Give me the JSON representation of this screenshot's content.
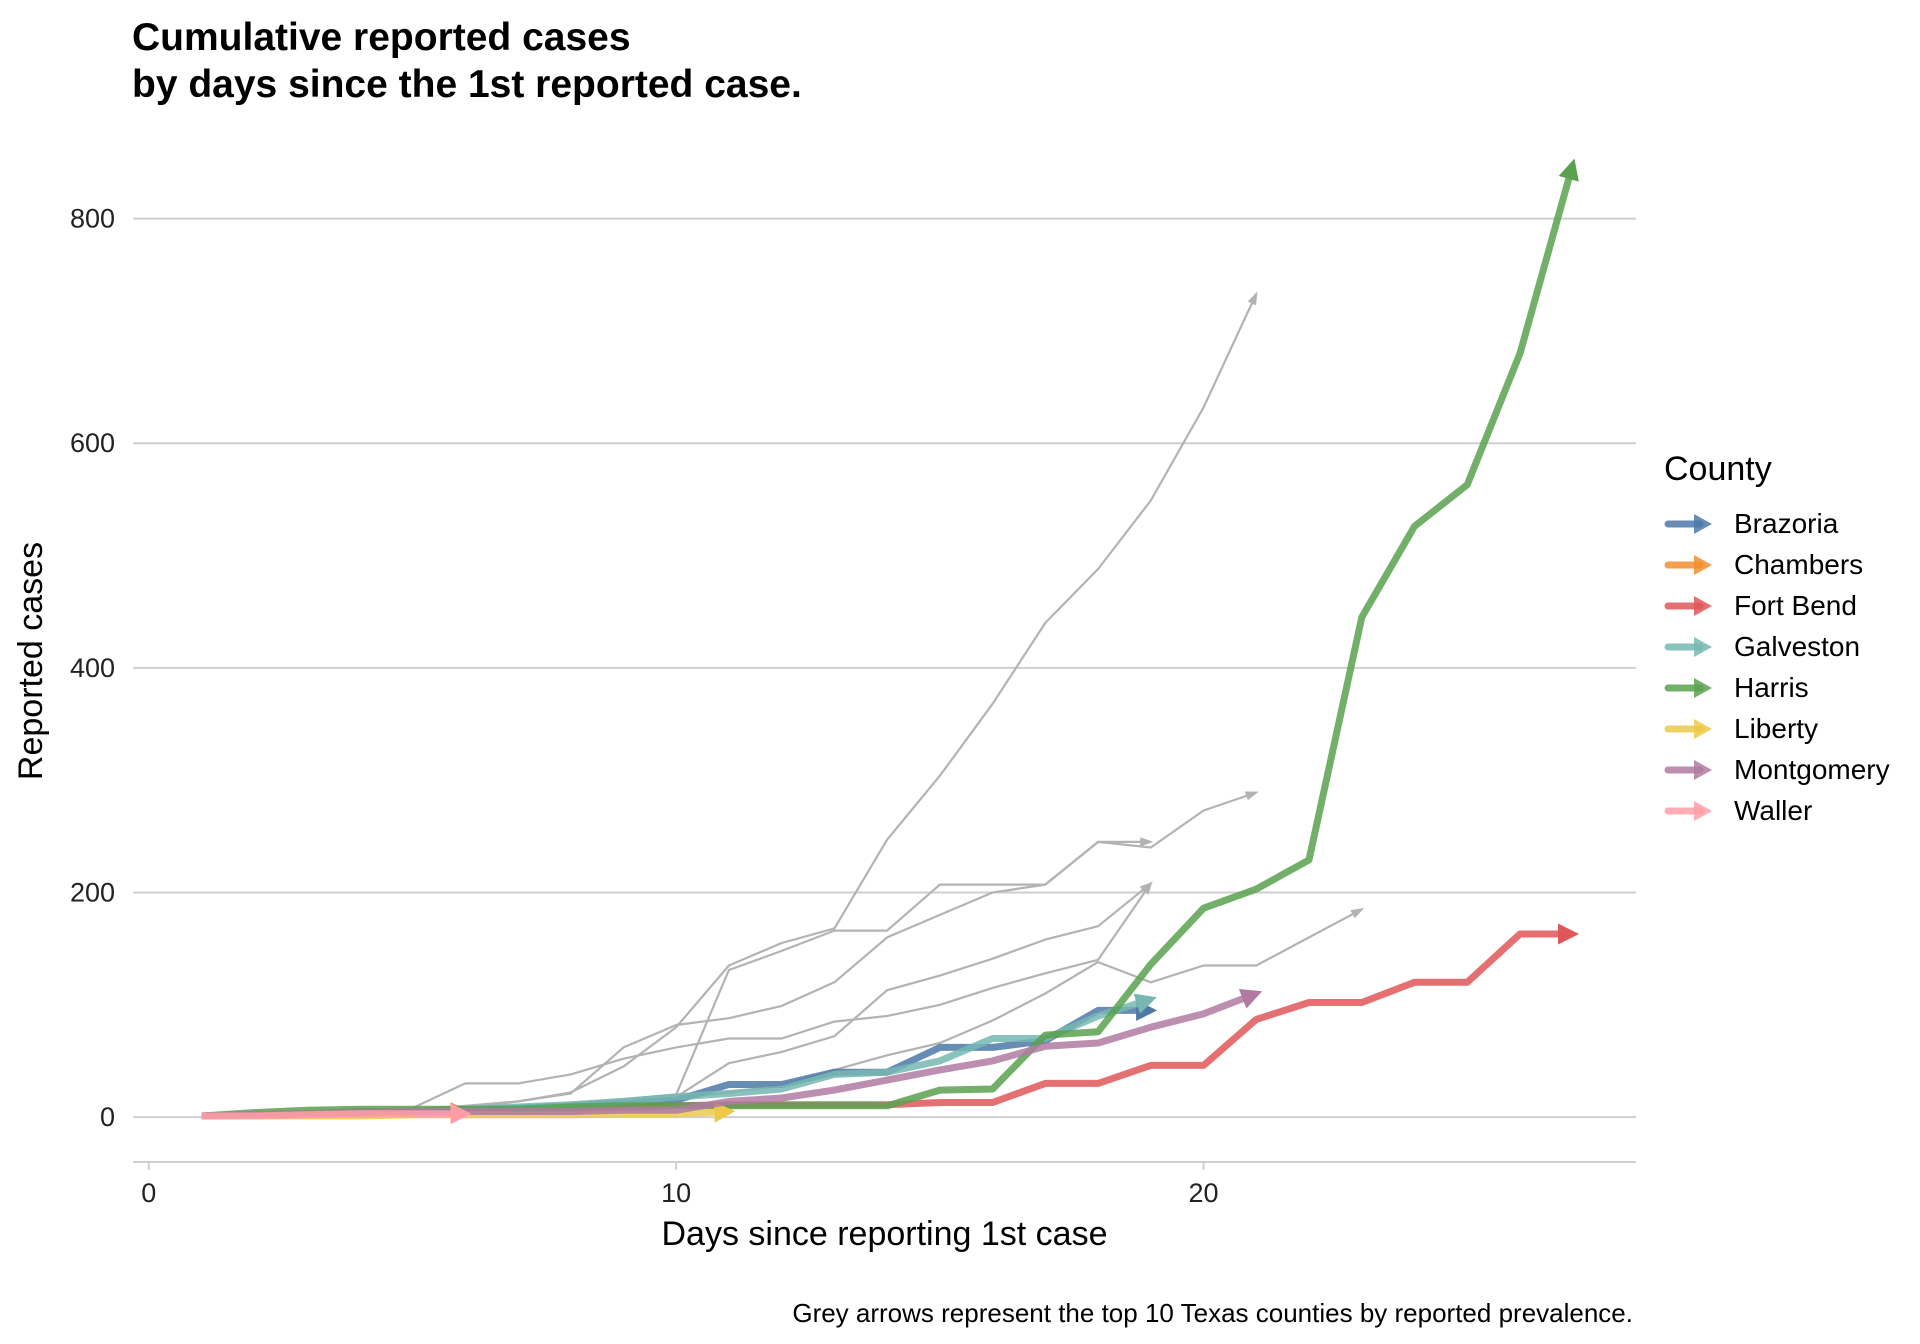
{
  "title_line1": "Cumulative reported cases",
  "title_line2": "by days since the 1st reported case.",
  "caption": "Grey arrows represent the top 10 Texas counties by reported prevalence.",
  "legend": {
    "title": "County",
    "items": [
      {
        "label": "Brazoria",
        "color": "#4e79a7"
      },
      {
        "label": "Chambers",
        "color": "#f28e2b"
      },
      {
        "label": "Fort Bend",
        "color": "#e15759"
      },
      {
        "label": "Galveston",
        "color": "#76b7b2"
      },
      {
        "label": "Harris",
        "color": "#59a14f"
      },
      {
        "label": "Liberty",
        "color": "#edc948"
      },
      {
        "label": "Montgomery",
        "color": "#b07aa1"
      },
      {
        "label": "Waller",
        "color": "#ff9da7"
      }
    ]
  },
  "chart_data": {
    "type": "line",
    "title": "Cumulative reported cases\nby days since the 1st reported case.",
    "xlabel": "Days since reporting 1st case",
    "ylabel": "Reported cases",
    "xlim": [
      -0.3,
      28.2
    ],
    "ylim": [
      -40,
      870
    ],
    "xticks": [
      0,
      10,
      20
    ],
    "yticks": [
      0,
      200,
      400,
      600,
      800
    ],
    "grid": "horizontal major lines",
    "legend_position": "right",
    "background_series_color": "#bbbbbb",
    "background_series": [
      {
        "x": [
          1,
          2,
          3,
          4,
          5,
          6,
          7,
          8,
          9,
          10,
          11,
          12,
          13,
          14,
          15,
          16,
          17,
          18,
          19,
          20,
          21
        ],
        "y": [
          1,
          2,
          3,
          4,
          5,
          8,
          14,
          22,
          45,
          80,
          135,
          155,
          168,
          247,
          304,
          368,
          440,
          488,
          549,
          632,
          733
        ]
      },
      {
        "x": [
          1,
          2,
          3,
          4,
          5,
          6,
          7,
          8,
          9,
          10,
          11,
          12,
          13,
          14,
          15,
          16,
          17,
          18,
          19,
          20,
          21
        ],
        "y": [
          1,
          2,
          3,
          5,
          7,
          10,
          14,
          21,
          62,
          82,
          88,
          99,
          120,
          160,
          180,
          200,
          207,
          245,
          240,
          273,
          289
        ]
      },
      {
        "x": [
          1,
          2,
          3,
          4,
          5,
          6,
          7,
          8,
          9,
          10,
          11,
          12,
          13,
          14,
          15,
          16,
          17,
          18,
          19
        ],
        "y": [
          1,
          2,
          3,
          4,
          5,
          8,
          10,
          12,
          16,
          20,
          131,
          148,
          166,
          166,
          207,
          207,
          207,
          245,
          245
        ]
      },
      {
        "x": [
          1,
          2,
          3,
          4,
          5,
          6,
          7,
          8,
          9,
          10,
          11,
          12,
          13,
          14,
          15,
          16,
          17,
          18,
          19
        ],
        "y": [
          1,
          2,
          3,
          4,
          5,
          7,
          9,
          11,
          14,
          18,
          48,
          58,
          72,
          113,
          126,
          141,
          158,
          170,
          208
        ]
      },
      {
        "x": [
          1,
          2,
          3,
          4,
          5,
          6,
          7,
          8,
          9,
          10,
          11,
          12,
          13,
          14,
          15,
          16,
          17,
          18,
          19,
          20,
          21,
          22,
          23
        ],
        "y": [
          1,
          1,
          2,
          3,
          4,
          5,
          6,
          8,
          12,
          17,
          22,
          28,
          42,
          55,
          66,
          86,
          110,
          138,
          120,
          135,
          135,
          160,
          185
        ]
      },
      {
        "x": [
          1,
          2,
          3,
          4,
          5,
          6,
          7,
          8,
          9,
          10,
          11,
          12,
          13,
          14,
          15,
          16,
          17,
          18,
          19
        ],
        "y": [
          1,
          2,
          4,
          6,
          8,
          30,
          30,
          38,
          52,
          62,
          70,
          70,
          85,
          90,
          100,
          115,
          128,
          140,
          208
        ]
      }
    ],
    "series": [
      {
        "name": "Brazoria",
        "color": "#4e79a7",
        "x": [
          1,
          2,
          3,
          4,
          5,
          6,
          7,
          8,
          9,
          10,
          11,
          12,
          13,
          14,
          15,
          16,
          17,
          18,
          19
        ],
        "y": [
          1,
          2,
          3,
          4,
          5,
          6,
          8,
          10,
          12,
          15,
          29,
          29,
          40,
          40,
          62,
          62,
          68,
          95,
          95
        ]
      },
      {
        "name": "Chambers",
        "color": "#f28e2b",
        "x": [
          1,
          2,
          3,
          4,
          5,
          6
        ],
        "y": [
          1,
          1,
          2,
          3,
          4,
          4
        ]
      },
      {
        "name": "Fort Bend",
        "color": "#e15759",
        "x": [
          1,
          2,
          3,
          4,
          5,
          6,
          7,
          8,
          9,
          10,
          11,
          12,
          13,
          14,
          15,
          16,
          17,
          18,
          19,
          20,
          21,
          22,
          23,
          24,
          25,
          26,
          27
        ],
        "y": [
          1,
          2,
          3,
          5,
          5,
          5,
          5,
          5,
          8,
          10,
          11,
          11,
          11,
          11,
          13,
          13,
          30,
          30,
          46,
          46,
          87,
          102,
          102,
          120,
          120,
          163,
          163
        ]
      },
      {
        "name": "Galveston",
        "color": "#76b7b2",
        "x": [
          1,
          2,
          3,
          4,
          5,
          6,
          7,
          8,
          9,
          10,
          11,
          12,
          13,
          14,
          15,
          16,
          17,
          18,
          19
        ],
        "y": [
          1,
          2,
          3,
          4,
          5,
          7,
          9,
          11,
          14,
          18,
          21,
          25,
          38,
          40,
          50,
          70,
          70,
          90,
          105
        ]
      },
      {
        "name": "Harris",
        "color": "#59a14f",
        "x": [
          1,
          2,
          3,
          4,
          5,
          6,
          7,
          8,
          9,
          10,
          11,
          12,
          13,
          14,
          15,
          16,
          17,
          18,
          19,
          20,
          21,
          22,
          23,
          24,
          25,
          26,
          27
        ],
        "y": [
          1,
          4,
          6,
          7,
          7,
          7,
          7,
          9,
          10,
          10,
          10,
          10,
          10,
          10,
          24,
          25,
          73,
          76,
          136,
          186,
          203,
          229,
          445,
          526,
          563,
          680,
          848
        ]
      },
      {
        "name": "Liberty",
        "color": "#edc948",
        "x": [
          1,
          2,
          3,
          4,
          5,
          6,
          7,
          8,
          9,
          10,
          11
        ],
        "y": [
          1,
          1,
          1,
          1,
          2,
          2,
          2,
          2,
          3,
          3,
          5
        ]
      },
      {
        "name": "Montgomery",
        "color": "#b07aa1",
        "x": [
          1,
          2,
          3,
          4,
          5,
          6,
          7,
          8,
          9,
          10,
          11,
          12,
          13,
          14,
          15,
          16,
          17,
          18,
          19,
          20,
          21
        ],
        "y": [
          1,
          2,
          3,
          4,
          5,
          5,
          5,
          5,
          6,
          6,
          14,
          17,
          24,
          33,
          42,
          50,
          63,
          66,
          80,
          92,
          110
        ]
      },
      {
        "name": "Waller",
        "color": "#ff9da7",
        "x": [
          1,
          2,
          3,
          4,
          5,
          6
        ],
        "y": [
          1,
          1,
          2,
          3,
          3,
          3
        ]
      }
    ]
  }
}
